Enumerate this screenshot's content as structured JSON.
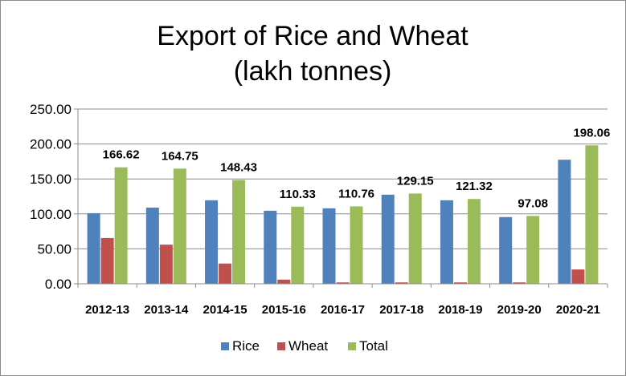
{
  "chart_data": {
    "type": "bar",
    "title_lines": [
      "Export of Rice and Wheat",
      "(lakh tonnes)"
    ],
    "categories": [
      "2012-13",
      "2013-14",
      "2014-15",
      "2015-16",
      "2016-17",
      "2017-18",
      "2018-19",
      "2019-20",
      "2020-21"
    ],
    "series": [
      {
        "name": "Rice",
        "color": "#4F81BD",
        "values": [
          101.0,
          109.0,
          119.5,
          104.5,
          108.0,
          127.5,
          119.5,
          95.5,
          177.5
        ]
      },
      {
        "name": "Wheat",
        "color": "#C0504D",
        "values": [
          65.5,
          56.0,
          29.0,
          6.0,
          2.0,
          2.0,
          2.0,
          2.0,
          20.5
        ]
      },
      {
        "name": "Total",
        "color": "#9BBB59",
        "values": [
          166.62,
          164.75,
          148.43,
          110.33,
          110.76,
          129.15,
          121.32,
          97.08,
          198.06
        ]
      }
    ],
    "total_labels": [
      "166.62",
      "164.75",
      "148.43",
      "110.33",
      "110.76",
      "129.15",
      "121.32",
      "97.08",
      "198.06"
    ],
    "y_ticks": [
      "0.00",
      "50.00",
      "100.00",
      "150.00",
      "200.00",
      "250.00"
    ],
    "ylim": [
      0,
      250
    ],
    "grid": true,
    "legend_position": "bottom"
  }
}
